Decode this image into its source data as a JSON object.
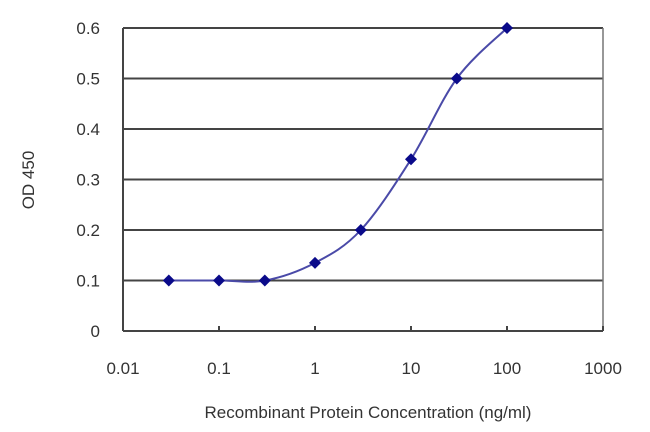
{
  "chart_data": {
    "type": "line",
    "title": "",
    "xlabel": "Recombinant Protein Concentration (ng/ml)",
    "ylabel": "OD 450",
    "xscale": "log",
    "xlim": [
      0.01,
      1000
    ],
    "ylim": [
      0,
      0.6
    ],
    "x_ticks": [
      "0.01",
      "0.1",
      "1",
      "10",
      "100",
      "1000"
    ],
    "y_ticks": [
      "0",
      "0.1",
      "0.2",
      "0.3",
      "0.4",
      "0.5",
      "0.6"
    ],
    "grid": {
      "horizontal": true,
      "vertical": false
    },
    "legend": null,
    "series": [
      {
        "name": "OD 450",
        "color": "#1a1a8c",
        "marker": "diamond",
        "x": [
          0.03,
          0.1,
          0.3,
          1,
          3,
          10,
          30,
          100
        ],
        "values": [
          0.1,
          0.1,
          0.1,
          0.135,
          0.2,
          0.34,
          0.5,
          0.6
        ]
      }
    ]
  },
  "colors": {
    "line": "#4a4aa8",
    "marker": "#0a0a8a",
    "grid": "#444444",
    "axis": "#444444",
    "text": "#333333"
  }
}
